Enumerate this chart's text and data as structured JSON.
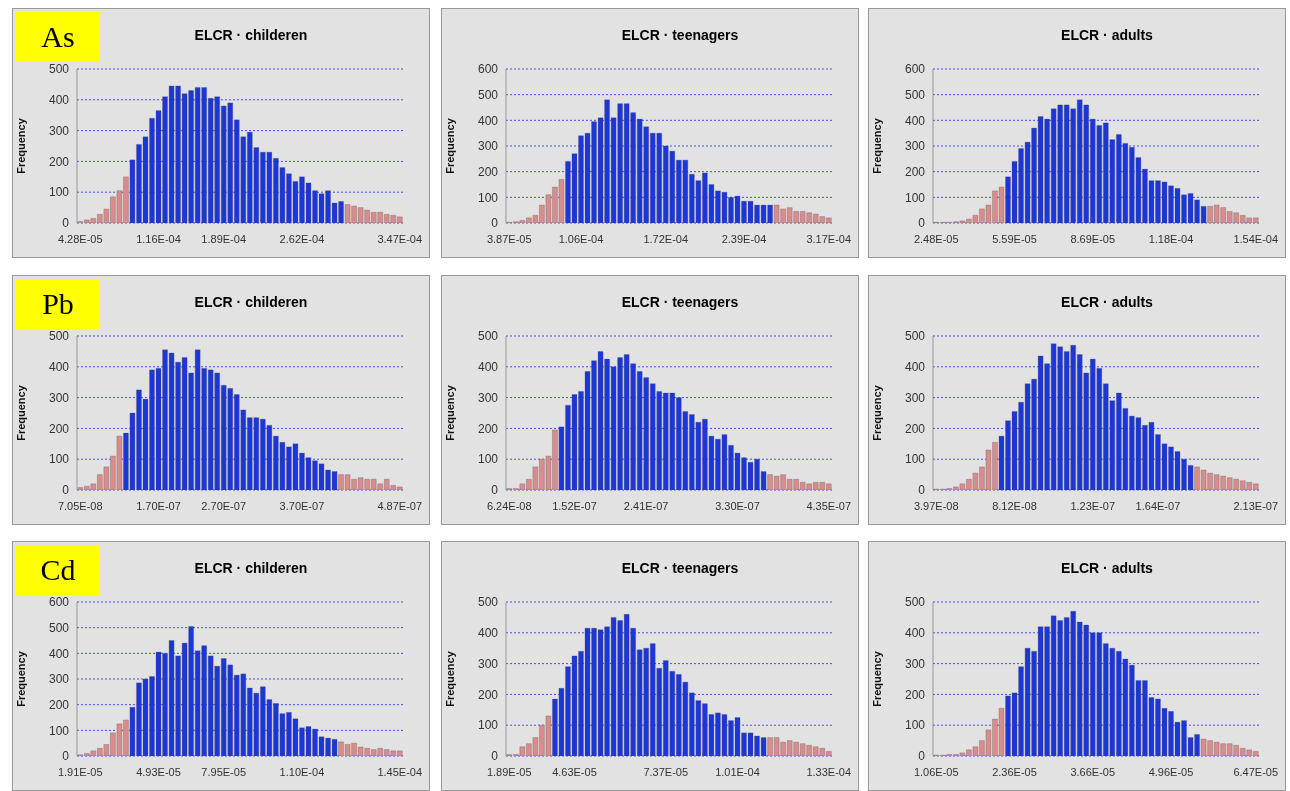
{
  "chart_data": [
    {
      "type": "bar",
      "title": "ELCR · childeren",
      "ylabel": "Frequency",
      "annotations": [
        "As"
      ],
      "grid": "y",
      "ylim": [
        0,
        500
      ],
      "yticks": [
        0,
        100,
        200,
        300,
        400,
        500
      ],
      "categories": [
        "4.28E-05",
        null,
        null,
        null,
        null,
        null,
        null,
        null,
        null,
        null,
        null,
        null,
        "1.16E-04",
        null,
        null,
        null,
        null,
        null,
        null,
        null,
        null,
        null,
        "1.89E-04",
        null,
        null,
        null,
        null,
        null,
        null,
        null,
        null,
        null,
        null,
        null,
        "2.62E-04",
        null,
        null,
        null,
        null,
        null,
        null,
        null,
        null,
        null,
        null,
        null,
        null,
        null,
        null,
        "3.47E-04"
      ],
      "values": [
        5,
        10,
        15,
        28,
        45,
        85,
        105,
        150,
        205,
        255,
        280,
        340,
        365,
        410,
        445,
        445,
        420,
        430,
        440,
        440,
        405,
        410,
        380,
        390,
        335,
        280,
        295,
        245,
        230,
        230,
        210,
        180,
        160,
        135,
        150,
        130,
        105,
        95,
        105,
        65,
        70,
        60,
        55,
        50,
        42,
        35,
        35,
        28,
        25,
        20
      ],
      "colors": [
        "#d98c8c",
        "#d98c8c",
        "#d98c8c",
        "#d98c8c",
        "#d98c8c",
        "#d98c8c",
        "#d98c8c",
        "#d98c8c",
        "#1c36d8",
        "#1c36d8",
        "#1c36d8",
        "#1c36d8",
        "#1c36d8",
        "#1c36d8",
        "#1c36d8",
        "#1c36d8",
        "#1c36d8",
        "#1c36d8",
        "#1c36d8",
        "#1c36d8",
        "#1c36d8",
        "#1c36d8",
        "#1c36d8",
        "#1c36d8",
        "#1c36d8",
        "#1c36d8",
        "#1c36d8",
        "#1c36d8",
        "#1c36d8",
        "#1c36d8",
        "#1c36d8",
        "#1c36d8",
        "#1c36d8",
        "#1c36d8",
        "#1c36d8",
        "#1c36d8",
        "#1c36d8",
        "#1c36d8",
        "#1c36d8",
        "#1c36d8",
        "#1c36d8",
        "#d98c8c",
        "#d98c8c",
        "#d98c8c",
        "#d98c8c",
        "#d98c8c",
        "#d98c8c",
        "#d98c8c",
        "#d98c8c",
        "#d98c8c"
      ]
    },
    {
      "type": "bar",
      "title": "ELCR · teenagers",
      "ylabel": "Frequency",
      "grid": "y",
      "ylim": [
        0,
        600
      ],
      "yticks": [
        0,
        100,
        200,
        300,
        400,
        500,
        600
      ],
      "categories": [
        "3.87E-05",
        null,
        null,
        null,
        null,
        null,
        null,
        null,
        null,
        null,
        null,
        "1.06E-04",
        null,
        null,
        null,
        null,
        null,
        null,
        null,
        null,
        null,
        null,
        null,
        null,
        "1.72E-04",
        null,
        null,
        null,
        null,
        null,
        null,
        null,
        null,
        null,
        null,
        null,
        "2.39E-04",
        null,
        null,
        null,
        null,
        null,
        null,
        null,
        null,
        null,
        null,
        null,
        null,
        "3.17E-04"
      ],
      "values": [
        3,
        5,
        10,
        20,
        30,
        70,
        110,
        140,
        170,
        240,
        270,
        340,
        350,
        395,
        410,
        480,
        410,
        465,
        465,
        430,
        405,
        375,
        350,
        350,
        300,
        280,
        245,
        245,
        190,
        165,
        195,
        150,
        125,
        120,
        100,
        105,
        85,
        85,
        70,
        70,
        70,
        70,
        55,
        60,
        45,
        45,
        40,
        35,
        25,
        20
      ],
      "colors": [
        "#d98c8c",
        "#d98c8c",
        "#d98c8c",
        "#d98c8c",
        "#d98c8c",
        "#d98c8c",
        "#d98c8c",
        "#d98c8c",
        "#d98c8c",
        "#1c36d8",
        "#1c36d8",
        "#1c36d8",
        "#1c36d8",
        "#1c36d8",
        "#1c36d8",
        "#1c36d8",
        "#1c36d8",
        "#1c36d8",
        "#1c36d8",
        "#1c36d8",
        "#1c36d8",
        "#1c36d8",
        "#1c36d8",
        "#1c36d8",
        "#1c36d8",
        "#1c36d8",
        "#1c36d8",
        "#1c36d8",
        "#1c36d8",
        "#1c36d8",
        "#1c36d8",
        "#1c36d8",
        "#1c36d8",
        "#1c36d8",
        "#1c36d8",
        "#1c36d8",
        "#1c36d8",
        "#1c36d8",
        "#1c36d8",
        "#1c36d8",
        "#1c36d8",
        "#d98c8c",
        "#d98c8c",
        "#d98c8c",
        "#d98c8c",
        "#d98c8c",
        "#d98c8c",
        "#d98c8c",
        "#d98c8c",
        "#d98c8c"
      ]
    },
    {
      "type": "bar",
      "title": "ELCR · adults",
      "ylabel": "Frequency",
      "grid": "y",
      "ylim": [
        0,
        600
      ],
      "yticks": [
        0,
        100,
        200,
        300,
        400,
        500,
        600
      ],
      "categories": [
        "2.48E-05",
        null,
        null,
        null,
        null,
        null,
        null,
        null,
        null,
        null,
        null,
        null,
        "5.59E-05",
        null,
        null,
        null,
        null,
        null,
        null,
        null,
        null,
        null,
        null,
        null,
        "8.69E-05",
        null,
        null,
        null,
        null,
        null,
        null,
        null,
        null,
        null,
        null,
        null,
        "1.18E-04",
        null,
        null,
        null,
        null,
        null,
        null,
        null,
        null,
        null,
        null,
        null,
        null,
        "1.54E-04"
      ],
      "values": [
        3,
        3,
        3,
        5,
        8,
        15,
        30,
        55,
        70,
        125,
        140,
        180,
        240,
        290,
        315,
        370,
        415,
        405,
        445,
        460,
        460,
        445,
        480,
        460,
        405,
        380,
        390,
        325,
        345,
        310,
        295,
        255,
        210,
        165,
        165,
        160,
        145,
        135,
        110,
        115,
        90,
        65,
        65,
        70,
        60,
        45,
        40,
        30,
        20,
        20
      ],
      "colors": [
        "#d98c8c",
        "#d98c8c",
        "#d98c8c",
        "#d98c8c",
        "#d98c8c",
        "#d98c8c",
        "#d98c8c",
        "#d98c8c",
        "#d98c8c",
        "#d98c8c",
        "#d98c8c",
        "#1c36d8",
        "#1c36d8",
        "#1c36d8",
        "#1c36d8",
        "#1c36d8",
        "#1c36d8",
        "#1c36d8",
        "#1c36d8",
        "#1c36d8",
        "#1c36d8",
        "#1c36d8",
        "#1c36d8",
        "#1c36d8",
        "#1c36d8",
        "#1c36d8",
        "#1c36d8",
        "#1c36d8",
        "#1c36d8",
        "#1c36d8",
        "#1c36d8",
        "#1c36d8",
        "#1c36d8",
        "#1c36d8",
        "#1c36d8",
        "#1c36d8",
        "#1c36d8",
        "#1c36d8",
        "#1c36d8",
        "#1c36d8",
        "#1c36d8",
        "#1c36d8",
        "#d98c8c",
        "#d98c8c",
        "#d98c8c",
        "#d98c8c",
        "#d98c8c",
        "#d98c8c",
        "#d98c8c",
        "#d98c8c"
      ]
    },
    {
      "type": "bar",
      "title": "ELCR · childeren",
      "ylabel": "Frequency",
      "annotations": [
        "Pb"
      ],
      "grid": "y",
      "ylim": [
        0,
        500
      ],
      "yticks": [
        0,
        100,
        200,
        300,
        400,
        500
      ],
      "categories": [
        "7.05E-08",
        null,
        null,
        null,
        null,
        null,
        null,
        null,
        null,
        null,
        null,
        null,
        "1.70E-07",
        null,
        null,
        null,
        null,
        null,
        null,
        null,
        null,
        null,
        "2.70E-07",
        null,
        null,
        null,
        null,
        null,
        null,
        null,
        null,
        null,
        null,
        null,
        "3.70E-07",
        null,
        null,
        null,
        null,
        null,
        null,
        null,
        null,
        null,
        null,
        null,
        null,
        null,
        null,
        "4.87E-07"
      ],
      "values": [
        8,
        12,
        20,
        50,
        75,
        110,
        175,
        185,
        250,
        325,
        295,
        390,
        395,
        455,
        445,
        415,
        430,
        380,
        455,
        395,
        390,
        380,
        340,
        330,
        310,
        260,
        235,
        235,
        230,
        210,
        175,
        155,
        140,
        150,
        120,
        105,
        95,
        85,
        65,
        60,
        50,
        50,
        35,
        40,
        35,
        35,
        20,
        35,
        15,
        10
      ],
      "colors": [
        "#d98c8c",
        "#d98c8c",
        "#d98c8c",
        "#d98c8c",
        "#d98c8c",
        "#d98c8c",
        "#d98c8c",
        "#1c36d8",
        "#1c36d8",
        "#1c36d8",
        "#1c36d8",
        "#1c36d8",
        "#1c36d8",
        "#1c36d8",
        "#1c36d8",
        "#1c36d8",
        "#1c36d8",
        "#1c36d8",
        "#1c36d8",
        "#1c36d8",
        "#1c36d8",
        "#1c36d8",
        "#1c36d8",
        "#1c36d8",
        "#1c36d8",
        "#1c36d8",
        "#1c36d8",
        "#1c36d8",
        "#1c36d8",
        "#1c36d8",
        "#1c36d8",
        "#1c36d8",
        "#1c36d8",
        "#1c36d8",
        "#1c36d8",
        "#1c36d8",
        "#1c36d8",
        "#1c36d8",
        "#1c36d8",
        "#1c36d8",
        "#d98c8c",
        "#d98c8c",
        "#d98c8c",
        "#d98c8c",
        "#d98c8c",
        "#d98c8c",
        "#d98c8c",
        "#d98c8c",
        "#d98c8c",
        "#d98c8c"
      ]
    },
    {
      "type": "bar",
      "title": "ELCR · teenagers",
      "ylabel": "Frequency",
      "grid": "y",
      "ylim": [
        0,
        500
      ],
      "yticks": [
        0,
        100,
        200,
        300,
        400,
        500
      ],
      "categories": [
        "6.24E-08",
        null,
        null,
        null,
        null,
        null,
        null,
        null,
        null,
        null,
        "1.52E-07",
        null,
        null,
        null,
        null,
        null,
        null,
        null,
        null,
        null,
        null,
        "2.41E-07",
        null,
        null,
        null,
        null,
        null,
        null,
        null,
        null,
        null,
        null,
        null,
        null,
        null,
        "3.30E-07",
        null,
        null,
        null,
        null,
        null,
        null,
        null,
        null,
        null,
        null,
        null,
        null,
        null,
        "4.35E-07"
      ],
      "values": [
        5,
        5,
        20,
        35,
        75,
        100,
        110,
        195,
        205,
        275,
        310,
        320,
        385,
        420,
        450,
        425,
        400,
        430,
        440,
        410,
        385,
        365,
        345,
        320,
        315,
        315,
        300,
        255,
        245,
        220,
        230,
        175,
        165,
        180,
        145,
        120,
        105,
        90,
        100,
        60,
        50,
        45,
        50,
        35,
        35,
        25,
        20,
        25,
        25,
        20
      ],
      "colors": [
        "#d98c8c",
        "#d98c8c",
        "#d98c8c",
        "#d98c8c",
        "#d98c8c",
        "#d98c8c",
        "#d98c8c",
        "#d98c8c",
        "#1c36d8",
        "#1c36d8",
        "#1c36d8",
        "#1c36d8",
        "#1c36d8",
        "#1c36d8",
        "#1c36d8",
        "#1c36d8",
        "#1c36d8",
        "#1c36d8",
        "#1c36d8",
        "#1c36d8",
        "#1c36d8",
        "#1c36d8",
        "#1c36d8",
        "#1c36d8",
        "#1c36d8",
        "#1c36d8",
        "#1c36d8",
        "#1c36d8",
        "#1c36d8",
        "#1c36d8",
        "#1c36d8",
        "#1c36d8",
        "#1c36d8",
        "#1c36d8",
        "#1c36d8",
        "#1c36d8",
        "#1c36d8",
        "#1c36d8",
        "#1c36d8",
        "#1c36d8",
        "#d98c8c",
        "#d98c8c",
        "#d98c8c",
        "#d98c8c",
        "#d98c8c",
        "#d98c8c",
        "#d98c8c",
        "#d98c8c",
        "#d98c8c",
        "#d98c8c"
      ]
    },
    {
      "type": "bar",
      "title": "ELCR · adults",
      "ylabel": "Frequency",
      "grid": "y",
      "ylim": [
        0,
        500
      ],
      "yticks": [
        0,
        100,
        200,
        300,
        400,
        500
      ],
      "categories": [
        "3.97E-08",
        null,
        null,
        null,
        null,
        null,
        null,
        null,
        null,
        null,
        null,
        null,
        "8.12E-08",
        null,
        null,
        null,
        null,
        null,
        null,
        null,
        null,
        null,
        null,
        null,
        "1.23E-07",
        null,
        null,
        null,
        null,
        null,
        null,
        null,
        null,
        null,
        "1.64E-07",
        null,
        null,
        null,
        null,
        null,
        null,
        null,
        null,
        null,
        null,
        null,
        null,
        null,
        null,
        "2.13E-07"
      ],
      "values": [
        3,
        3,
        5,
        10,
        20,
        35,
        55,
        75,
        130,
        155,
        175,
        225,
        255,
        285,
        345,
        360,
        435,
        410,
        475,
        465,
        450,
        470,
        440,
        380,
        425,
        395,
        345,
        290,
        315,
        265,
        240,
        235,
        210,
        220,
        180,
        150,
        140,
        125,
        100,
        80,
        75,
        65,
        55,
        50,
        45,
        40,
        35,
        30,
        25,
        20
      ],
      "colors": [
        "#d98c8c",
        "#d98c8c",
        "#d98c8c",
        "#d98c8c",
        "#d98c8c",
        "#d98c8c",
        "#d98c8c",
        "#d98c8c",
        "#d98c8c",
        "#d98c8c",
        "#1c36d8",
        "#1c36d8",
        "#1c36d8",
        "#1c36d8",
        "#1c36d8",
        "#1c36d8",
        "#1c36d8",
        "#1c36d8",
        "#1c36d8",
        "#1c36d8",
        "#1c36d8",
        "#1c36d8",
        "#1c36d8",
        "#1c36d8",
        "#1c36d8",
        "#1c36d8",
        "#1c36d8",
        "#1c36d8",
        "#1c36d8",
        "#1c36d8",
        "#1c36d8",
        "#1c36d8",
        "#1c36d8",
        "#1c36d8",
        "#1c36d8",
        "#1c36d8",
        "#1c36d8",
        "#1c36d8",
        "#1c36d8",
        "#1c36d8",
        "#d98c8c",
        "#d98c8c",
        "#d98c8c",
        "#d98c8c",
        "#d98c8c",
        "#d98c8c",
        "#d98c8c",
        "#d98c8c",
        "#d98c8c",
        "#d98c8c"
      ]
    },
    {
      "type": "bar",
      "title": "ELCR · childeren",
      "ylabel": "Frequency",
      "annotations": [
        "Cd"
      ],
      "grid": "y",
      "ylim": [
        0,
        600
      ],
      "yticks": [
        0,
        100,
        200,
        300,
        400,
        500,
        600
      ],
      "categories": [
        "1.91E-05",
        null,
        null,
        null,
        null,
        null,
        null,
        null,
        null,
        null,
        null,
        null,
        "4.93E-05",
        null,
        null,
        null,
        null,
        null,
        null,
        null,
        null,
        null,
        "7.95E-05",
        null,
        null,
        null,
        null,
        null,
        null,
        null,
        null,
        null,
        null,
        null,
        "1.10E-04",
        null,
        null,
        null,
        null,
        null,
        null,
        null,
        null,
        null,
        null,
        null,
        null,
        null,
        null,
        "1.45E-04"
      ],
      "values": [
        5,
        10,
        20,
        30,
        45,
        90,
        125,
        140,
        190,
        285,
        300,
        310,
        405,
        400,
        450,
        390,
        440,
        505,
        410,
        430,
        390,
        350,
        380,
        355,
        315,
        320,
        265,
        245,
        270,
        220,
        205,
        165,
        170,
        145,
        110,
        115,
        105,
        75,
        70,
        65,
        55,
        45,
        50,
        35,
        30,
        25,
        30,
        25,
        20,
        20
      ],
      "colors": [
        "#d98c8c",
        "#d98c8c",
        "#d98c8c",
        "#d98c8c",
        "#d98c8c",
        "#d98c8c",
        "#d98c8c",
        "#d98c8c",
        "#1c36d8",
        "#1c36d8",
        "#1c36d8",
        "#1c36d8",
        "#1c36d8",
        "#1c36d8",
        "#1c36d8",
        "#1c36d8",
        "#1c36d8",
        "#1c36d8",
        "#1c36d8",
        "#1c36d8",
        "#1c36d8",
        "#1c36d8",
        "#1c36d8",
        "#1c36d8",
        "#1c36d8",
        "#1c36d8",
        "#1c36d8",
        "#1c36d8",
        "#1c36d8",
        "#1c36d8",
        "#1c36d8",
        "#1c36d8",
        "#1c36d8",
        "#1c36d8",
        "#1c36d8",
        "#1c36d8",
        "#1c36d8",
        "#1c36d8",
        "#1c36d8",
        "#1c36d8",
        "#d98c8c",
        "#d98c8c",
        "#d98c8c",
        "#d98c8c",
        "#d98c8c",
        "#d98c8c",
        "#d98c8c",
        "#d98c8c",
        "#d98c8c",
        "#d98c8c"
      ]
    },
    {
      "type": "bar",
      "title": "ELCR · teenagers",
      "ylabel": "Frequency",
      "grid": "y",
      "ylim": [
        0,
        500
      ],
      "yticks": [
        0,
        100,
        200,
        300,
        400,
        500
      ],
      "categories": [
        "1.89E-05",
        null,
        null,
        null,
        null,
        null,
        null,
        null,
        null,
        null,
        "4.63E-05",
        null,
        null,
        null,
        null,
        null,
        null,
        null,
        null,
        null,
        null,
        null,
        null,
        null,
        "7.37E-05",
        null,
        null,
        null,
        null,
        null,
        null,
        null,
        null,
        null,
        null,
        "1.01E-04",
        null,
        null,
        null,
        null,
        null,
        null,
        null,
        null,
        null,
        null,
        null,
        null,
        null,
        "1.33E-04"
      ],
      "values": [
        5,
        5,
        30,
        40,
        60,
        100,
        130,
        185,
        220,
        290,
        325,
        340,
        415,
        415,
        410,
        420,
        450,
        440,
        460,
        415,
        345,
        350,
        365,
        285,
        310,
        275,
        265,
        240,
        205,
        180,
        170,
        135,
        140,
        135,
        115,
        125,
        75,
        75,
        65,
        60,
        60,
        60,
        45,
        50,
        45,
        40,
        35,
        30,
        25,
        15
      ],
      "colors": [
        "#d98c8c",
        "#d98c8c",
        "#d98c8c",
        "#d98c8c",
        "#d98c8c",
        "#d98c8c",
        "#d98c8c",
        "#1c36d8",
        "#1c36d8",
        "#1c36d8",
        "#1c36d8",
        "#1c36d8",
        "#1c36d8",
        "#1c36d8",
        "#1c36d8",
        "#1c36d8",
        "#1c36d8",
        "#1c36d8",
        "#1c36d8",
        "#1c36d8",
        "#1c36d8",
        "#1c36d8",
        "#1c36d8",
        "#1c36d8",
        "#1c36d8",
        "#1c36d8",
        "#1c36d8",
        "#1c36d8",
        "#1c36d8",
        "#1c36d8",
        "#1c36d8",
        "#1c36d8",
        "#1c36d8",
        "#1c36d8",
        "#1c36d8",
        "#1c36d8",
        "#1c36d8",
        "#1c36d8",
        "#1c36d8",
        "#1c36d8",
        "#d98c8c",
        "#d98c8c",
        "#d98c8c",
        "#d98c8c",
        "#d98c8c",
        "#d98c8c",
        "#d98c8c",
        "#d98c8c",
        "#d98c8c",
        "#d98c8c"
      ]
    },
    {
      "type": "bar",
      "title": "ELCR · adults",
      "ylabel": "Frequency",
      "grid": "y",
      "ylim": [
        0,
        500
      ],
      "yticks": [
        0,
        100,
        200,
        300,
        400,
        500
      ],
      "categories": [
        "1.06E-05",
        null,
        null,
        null,
        null,
        null,
        null,
        null,
        null,
        null,
        null,
        null,
        "2.36E-05",
        null,
        null,
        null,
        null,
        null,
        null,
        null,
        null,
        null,
        null,
        null,
        "3.66E-05",
        null,
        null,
        null,
        null,
        null,
        null,
        null,
        null,
        null,
        null,
        null,
        "4.96E-05",
        null,
        null,
        null,
        null,
        null,
        null,
        null,
        null,
        null,
        null,
        null,
        null,
        "6.47E-05"
      ],
      "values": [
        3,
        3,
        5,
        5,
        10,
        20,
        30,
        50,
        85,
        120,
        155,
        195,
        205,
        290,
        350,
        340,
        420,
        420,
        455,
        440,
        450,
        470,
        435,
        425,
        400,
        400,
        365,
        350,
        340,
        315,
        295,
        245,
        245,
        190,
        185,
        155,
        145,
        110,
        115,
        60,
        70,
        55,
        50,
        45,
        40,
        40,
        35,
        25,
        20,
        15
      ],
      "colors": [
        "#d98c8c",
        "#d98c8c",
        "#d98c8c",
        "#d98c8c",
        "#d98c8c",
        "#d98c8c",
        "#d98c8c",
        "#d98c8c",
        "#d98c8c",
        "#d98c8c",
        "#d98c8c",
        "#1c36d8",
        "#1c36d8",
        "#1c36d8",
        "#1c36d8",
        "#1c36d8",
        "#1c36d8",
        "#1c36d8",
        "#1c36d8",
        "#1c36d8",
        "#1c36d8",
        "#1c36d8",
        "#1c36d8",
        "#1c36d8",
        "#1c36d8",
        "#1c36d8",
        "#1c36d8",
        "#1c36d8",
        "#1c36d8",
        "#1c36d8",
        "#1c36d8",
        "#1c36d8",
        "#1c36d8",
        "#1c36d8",
        "#1c36d8",
        "#1c36d8",
        "#1c36d8",
        "#1c36d8",
        "#1c36d8",
        "#1c36d8",
        "#1c36d8",
        "#d98c8c",
        "#d98c8c",
        "#d98c8c",
        "#d98c8c",
        "#d98c8c",
        "#d98c8c",
        "#d98c8c",
        "#d98c8c",
        "#d98c8c"
      ]
    }
  ]
}
